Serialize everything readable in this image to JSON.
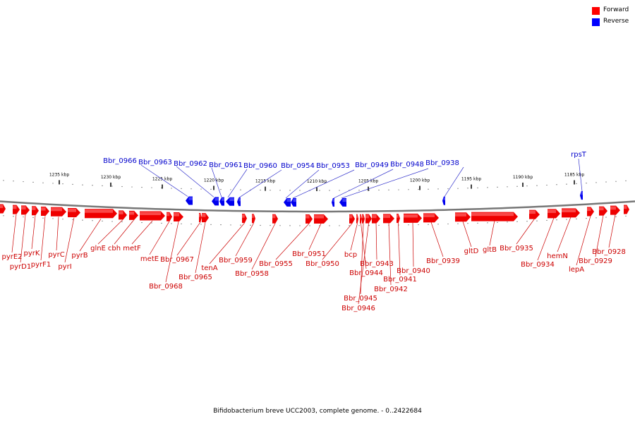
{
  "legend": [
    {
      "label": "Forward",
      "color": "#ff0000"
    },
    {
      "label": "Reverse",
      "color": "#0000ff"
    }
  ],
  "caption": "Bifidobacterium breve UCC2003, complete genome. - 0..2422684",
  "colors": {
    "forward": "#ee0000",
    "forward_light": "#ff6666",
    "reverse": "#0000ee",
    "reverse_light": "#5555ff",
    "backbone": "#777777",
    "label_fwd": "#cc0000",
    "label_rev": "#0000cc",
    "leader_fwd": "#cc0000",
    "leader_rev": "#3333cc"
  },
  "ticks": [
    {
      "label": "1235 kbp",
      "kbp": 1235
    },
    {
      "label": "1230 kbp",
      "kbp": 1230
    },
    {
      "label": "1225 kbp",
      "kbp": 1225
    },
    {
      "label": "1220 kbp",
      "kbp": 1220
    },
    {
      "label": "1215 kbp",
      "kbp": 1215
    },
    {
      "label": "1210 kbp",
      "kbp": 1210
    },
    {
      "label": "1205 kbp",
      "kbp": 1205
    },
    {
      "label": "1200 kbp",
      "kbp": 1200
    },
    {
      "label": "1195 kbp",
      "kbp": 1195
    },
    {
      "label": "1190 kbp",
      "kbp": 1190
    },
    {
      "label": "1185 kbp",
      "kbp": 1185
    }
  ],
  "reverse_genes": [
    {
      "label": "Bbr_0966"
    },
    {
      "label": "Bbr_0963"
    },
    {
      "label": "Bbr_0962"
    },
    {
      "label": "Bbr_0961"
    },
    {
      "label": "Bbr_0960"
    },
    {
      "label": "Bbr_0954"
    },
    {
      "label": "Bbr_0953"
    },
    {
      "label": "Bbr_0949"
    },
    {
      "label": "Bbr_0948"
    },
    {
      "label": "Bbr_0938"
    },
    {
      "label": "rpsT"
    }
  ],
  "forward_genes": [
    {
      "label": "pyrE2"
    },
    {
      "label": "pyrD1"
    },
    {
      "label": "pyrK"
    },
    {
      "label": "pyrF1"
    },
    {
      "label": "pyrC"
    },
    {
      "label": "pyrI"
    },
    {
      "label": "pyrB"
    },
    {
      "label": "glnE"
    },
    {
      "label": "cbh"
    },
    {
      "label": "metF"
    },
    {
      "label": "metE"
    },
    {
      "label": "Bbr_0968"
    },
    {
      "label": "Bbr_0967"
    },
    {
      "label": "Bbr_0965"
    },
    {
      "label": "tenA"
    },
    {
      "label": "Bbr_0959"
    },
    {
      "label": "Bbr_0958"
    },
    {
      "label": "Bbr_0955"
    },
    {
      "label": "Bbr_0951"
    },
    {
      "label": "Bbr_0950"
    },
    {
      "label": "bcp"
    },
    {
      "label": "Bbr_0944"
    },
    {
      "label": "Bbr_0945"
    },
    {
      "label": "Bbr_0946"
    },
    {
      "label": "Bbr_0943"
    },
    {
      "label": "Bbr_0942"
    },
    {
      "label": "Bbr_0941"
    },
    {
      "label": "Bbr_0940"
    },
    {
      "label": "Bbr_0939"
    },
    {
      "label": "gltD"
    },
    {
      "label": "gltB"
    },
    {
      "label": "Bbr_0935"
    },
    {
      "label": "Bbr_0934"
    },
    {
      "label": "hemN"
    },
    {
      "label": "lepA"
    },
    {
      "label": "Bbr_0929"
    },
    {
      "label": "Bbr_0928"
    }
  ]
}
